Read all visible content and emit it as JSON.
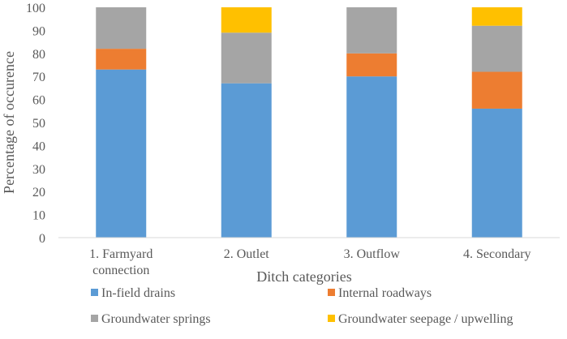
{
  "chart_data": {
    "type": "bar",
    "stacked": true,
    "title": "",
    "xlabel": "Ditch categories",
    "ylabel": "Percentage of occurence",
    "ylim": [
      0,
      100
    ],
    "yticks": [
      0,
      10,
      20,
      30,
      40,
      50,
      60,
      70,
      80,
      90,
      100
    ],
    "grid": false,
    "legend_position": "bottom",
    "categories": [
      [
        "1. Farmyard",
        "connection"
      ],
      [
        "2. Outlet"
      ],
      [
        "3. Outflow"
      ],
      [
        "4. Secondary"
      ]
    ],
    "series": [
      {
        "name": "In-field drains",
        "color": "#5b9bd5",
        "values": [
          73,
          67,
          70,
          56
        ]
      },
      {
        "name": "Internal roadways",
        "color": "#ed7d31",
        "values": [
          9,
          0,
          10,
          16
        ]
      },
      {
        "name": "Groundwater springs",
        "color": "#a5a5a5",
        "values": [
          18,
          22,
          20,
          20
        ]
      },
      {
        "name": "Groundwater seepage / upwelling",
        "color": "#ffc000",
        "values": [
          0,
          11,
          0,
          8
        ]
      }
    ]
  }
}
